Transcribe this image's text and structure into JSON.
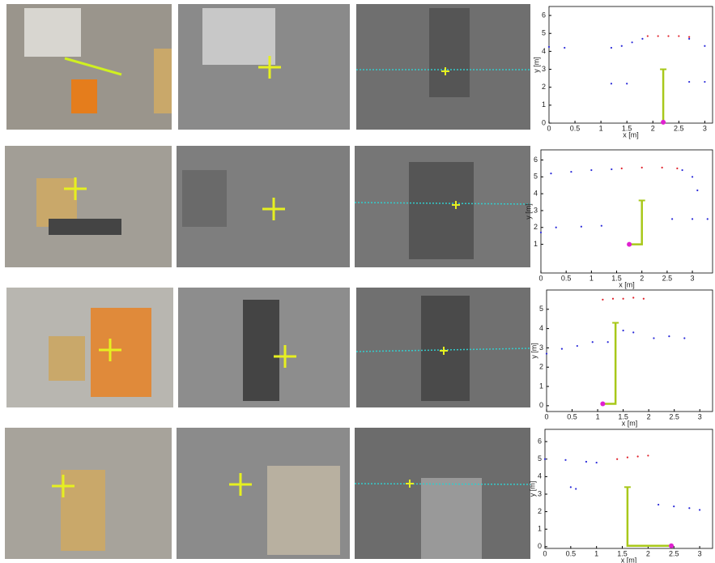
{
  "chart_data": [
    {
      "type": "scatter",
      "x_label": "x [m]",
      "y_label": "y [m]",
      "xlim": [
        0,
        3.15
      ],
      "ylim": [
        0,
        6.5
      ],
      "xticks": [
        0,
        0.5,
        1,
        1.5,
        2,
        2.5,
        3
      ],
      "yticks": [
        0,
        1,
        2,
        3,
        4,
        5,
        6
      ],
      "series": [
        {
          "marker": "dot",
          "color": "#2b2bd9",
          "x": [
            0,
            0.3,
            1.2,
            1.4,
            1.6,
            1.8,
            2.7,
            3.0,
            1.2,
            1.5,
            2.7,
            3.0
          ],
          "values": [
            4.25,
            4.2,
            4.2,
            4.3,
            4.5,
            4.7,
            4.7,
            4.3,
            2.2,
            2.2,
            2.3,
            2.3
          ]
        },
        {
          "marker": "dot",
          "color": "#e0202a",
          "x": [
            1.9,
            2.1,
            2.3,
            2.5,
            2.7
          ],
          "values": [
            4.85,
            4.85,
            4.85,
            4.85,
            4.8
          ]
        },
        {
          "marker": "line",
          "color": "#a8c81a",
          "x": [
            2.2,
            2.2
          ],
          "values": [
            0.05,
            3
          ]
        },
        {
          "marker": "circle",
          "color": "#e020d0",
          "x": [
            2.2
          ],
          "values": [
            0.05
          ]
        }
      ]
    },
    {
      "type": "scatter",
      "x_label": "x [m]",
      "y_label": "y [m]",
      "xlim": [
        0,
        3.4
      ],
      "ylim": [
        -0.7,
        6.6
      ],
      "xticks": [
        0,
        0.5,
        1,
        1.5,
        2,
        2.5,
        3
      ],
      "yticks": [
        1,
        2,
        3,
        4,
        5,
        6
      ],
      "series": [
        {
          "marker": "dot",
          "color": "#2b2bd9",
          "x": [
            0.2,
            0.6,
            1.0,
            1.4,
            2.8,
            3.0,
            3.1,
            0,
            0.3,
            0.8,
            1.2,
            2.6,
            3.0,
            3.3
          ],
          "values": [
            5.2,
            5.3,
            5.4,
            5.45,
            5.4,
            5.0,
            4.2,
            1.7,
            2.0,
            2.05,
            2.1,
            2.5,
            2.5,
            2.5
          ]
        },
        {
          "marker": "dot",
          "color": "#e0202a",
          "x": [
            1.6,
            2.0,
            2.4,
            2.7
          ],
          "values": [
            5.5,
            5.55,
            5.55,
            5.5
          ]
        },
        {
          "marker": "line",
          "color": "#a8c81a",
          "x": [
            1.75,
            2,
            2
          ],
          "values": [
            1,
            1,
            3.6
          ]
        },
        {
          "marker": "circle",
          "color": "#e020d0",
          "x": [
            1.75
          ],
          "values": [
            1
          ]
        }
      ]
    },
    {
      "type": "scatter",
      "x_label": "x [m]",
      "y_label": "y [m]",
      "xlim": [
        0,
        3.25
      ],
      "ylim": [
        -0.3,
        6
      ],
      "xticks": [
        0,
        0.5,
        1,
        1.5,
        2,
        2.5,
        3
      ],
      "yticks": [
        0,
        1,
        2,
        3,
        4,
        5
      ],
      "series": [
        {
          "marker": "dot",
          "color": "#2b2bd9",
          "x": [
            0,
            0.3,
            0.6,
            0.9,
            1.2,
            1.5,
            1.7,
            2.1,
            2.4,
            2.7
          ],
          "values": [
            2.7,
            2.95,
            3.1,
            3.3,
            3.3,
            3.9,
            3.8,
            3.5,
            3.6,
            3.5
          ]
        },
        {
          "marker": "dot",
          "color": "#e0202a",
          "x": [
            1.1,
            1.3,
            1.5,
            1.7,
            1.9
          ],
          "values": [
            5.5,
            5.55,
            5.55,
            5.6,
            5.55
          ]
        },
        {
          "marker": "line",
          "color": "#a8c81a",
          "x": [
            1.1,
            1.35,
            1.35
          ],
          "values": [
            0.1,
            0.1,
            4.3
          ]
        },
        {
          "marker": "circle",
          "color": "#e020d0",
          "x": [
            1.1
          ],
          "values": [
            0.1
          ]
        }
      ]
    },
    {
      "type": "scatter",
      "x_label": "x [m]",
      "y_label": "y [m]",
      "xlim": [
        0,
        3.25
      ],
      "ylim": [
        -0.1,
        6.7
      ],
      "xticks": [
        0,
        0.5,
        1,
        1.5,
        2,
        2.5,
        3
      ],
      "yticks": [
        0,
        1,
        2,
        3,
        4,
        5,
        6
      ],
      "series": [
        {
          "marker": "dot",
          "color": "#2b2bd9",
          "x": [
            0,
            0.4,
            0.8,
            1.0,
            0.5,
            0.6,
            2.2,
            2.5,
            2.8,
            3.0
          ],
          "values": [
            5.0,
            4.95,
            4.85,
            4.8,
            3.4,
            3.3,
            2.4,
            2.3,
            2.2,
            2.1
          ]
        },
        {
          "marker": "dot",
          "color": "#e0202a",
          "x": [
            1.4,
            1.6,
            1.8,
            2.0
          ],
          "values": [
            5.0,
            5.1,
            5.15,
            5.2
          ]
        },
        {
          "marker": "line",
          "color": "#a8c81a",
          "x": [
            2.45,
            1.6,
            1.6
          ],
          "values": [
            0.05,
            0.05,
            3.4
          ]
        },
        {
          "marker": "circle",
          "color": "#e020d0",
          "x": [
            2.45
          ],
          "values": [
            0.05
          ]
        }
      ]
    }
  ]
}
